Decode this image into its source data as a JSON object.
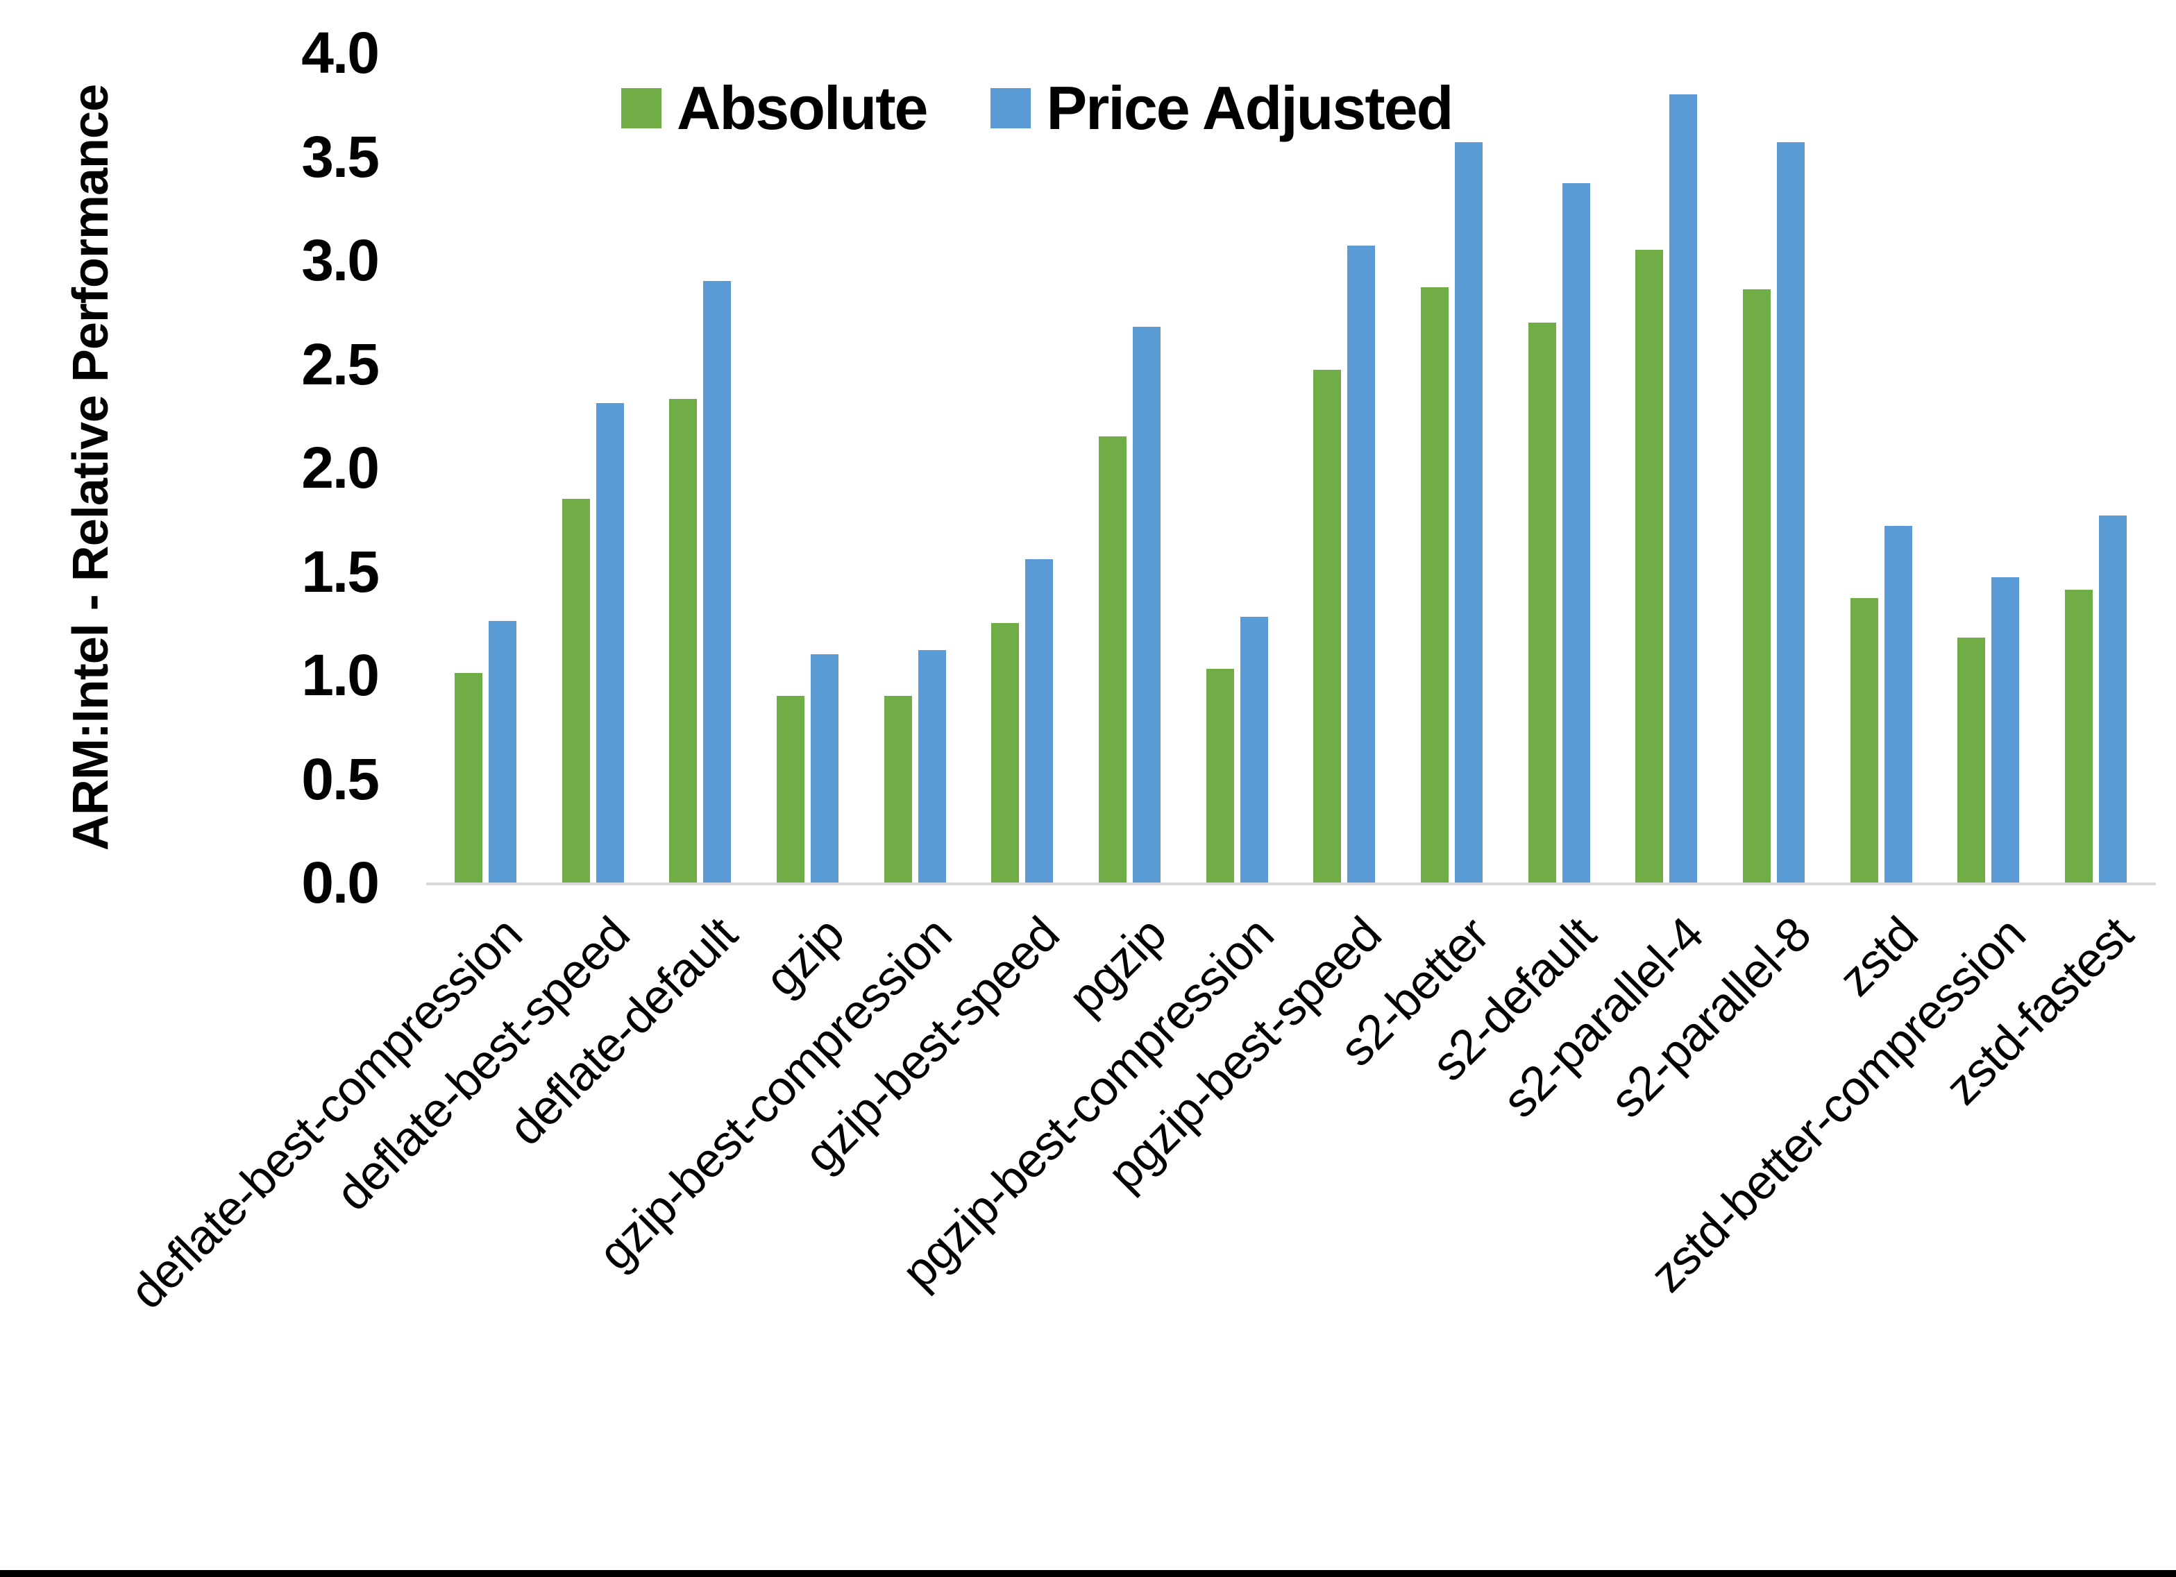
{
  "figure": {
    "background": "#ffffff",
    "border_bottom_color": "#000000"
  },
  "chart_data": {
    "type": "bar",
    "title": "",
    "ylabel": "ARM:Intel - Relative Performance",
    "xlabel": "",
    "ylim": [
      0.0,
      4.0
    ],
    "ytick_interval": 0.5,
    "ytick_labels": [
      "0.0",
      "0.5",
      "1.0",
      "1.5",
      "2.0",
      "2.5",
      "3.0",
      "3.5",
      "4.0"
    ],
    "grid": false,
    "legend_position": "top-center",
    "axis_line_color": "#d9d9d9",
    "text_color": "#000000",
    "categories": [
      "deflate-best-compression",
      "deflate-best-speed",
      "deflate-default",
      "gzip",
      "gzip-best-compression",
      "gzip-best-speed",
      "pgzip",
      "pgzip-best-compression",
      "pgzip-best-speed",
      "s2-better",
      "s2-default",
      "s2-parallel-4",
      "s2-parallel-8",
      "zstd",
      "zstd-better-compression",
      "zstd-fastest"
    ],
    "series": [
      {
        "name": "Absolute",
        "color": "#70AD47",
        "values": [
          1.01,
          1.85,
          2.33,
          0.9,
          0.9,
          1.25,
          2.15,
          1.03,
          2.47,
          2.87,
          2.7,
          3.05,
          2.86,
          1.37,
          1.18,
          1.41
        ]
      },
      {
        "name": "Price Adjusted",
        "color": "#5B9BD5",
        "values": [
          1.26,
          2.31,
          2.9,
          1.1,
          1.12,
          1.56,
          2.68,
          1.28,
          3.07,
          3.57,
          3.37,
          3.8,
          3.57,
          1.72,
          1.47,
          1.77
        ]
      }
    ]
  }
}
